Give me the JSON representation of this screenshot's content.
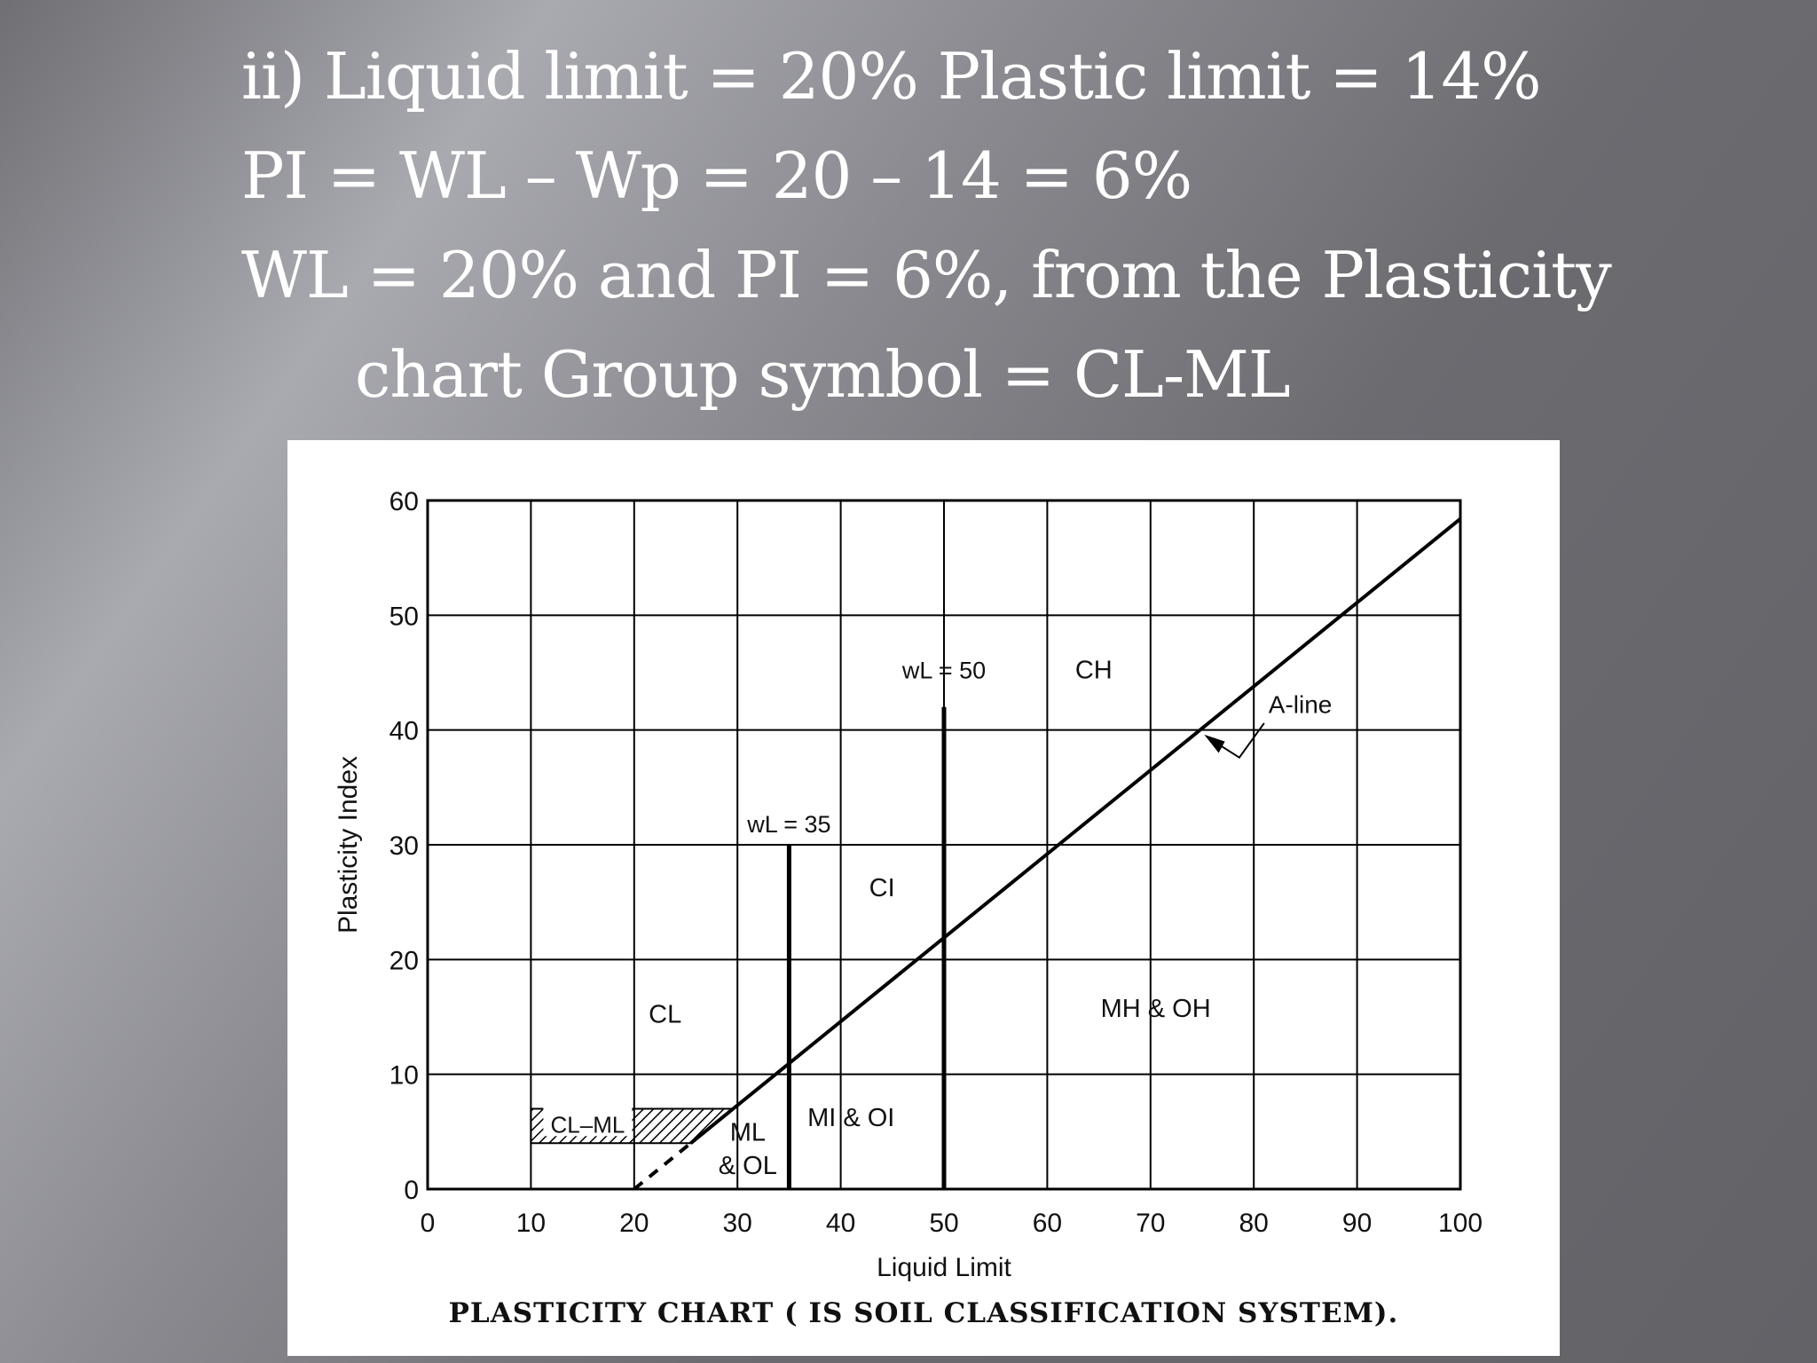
{
  "slide": {
    "line1": "ii) Liquid limit = 20% Plastic limit = 14%",
    "line2": "PI = WL – Wp = 20 – 14 = 6%",
    "line3": "WL = 20% and PI = 6%, from the Plasticity",
    "line4": "chart Group symbol = CL-ML"
  },
  "chart_data": {
    "type": "line",
    "title": "PLASTICITY CHART ( IS SOIL CLASSIFICATION SYSTEM).",
    "xlabel": "Liquid Limit",
    "ylabel": "Plasticity Index",
    "xlim": [
      0,
      100
    ],
    "ylim": [
      0,
      60
    ],
    "x_ticks": [
      0,
      10,
      20,
      30,
      40,
      50,
      60,
      70,
      80,
      90,
      100
    ],
    "y_ticks": [
      0,
      10,
      20,
      30,
      40,
      50,
      60
    ],
    "grid": true,
    "a_line": {
      "label": "A-line",
      "points": [
        [
          20,
          0
        ],
        [
          100,
          58.4
        ]
      ]
    },
    "vertical_lines": [
      {
        "label": "w_L = 35",
        "x": 35,
        "y_top": 30
      },
      {
        "label": "w_L = 50",
        "x": 50,
        "y_top": 42
      }
    ],
    "hatched_zone": {
      "label": "CL–ML",
      "x_range": [
        10,
        29.6
      ],
      "pi_range": [
        4,
        7
      ]
    },
    "zones": [
      {
        "label": "CL",
        "x": 23,
        "y": 14.5
      },
      {
        "label": "CI",
        "x": 44,
        "y": 25.5
      },
      {
        "label": "CH",
        "x": 64.5,
        "y": 44.5
      },
      {
        "label": "MH & OH",
        "x": 70.5,
        "y": 15
      },
      {
        "label": "MI & OI",
        "x": 41,
        "y": 5.5
      },
      {
        "label": "ML",
        "x": 31,
        "y": 4.2
      },
      {
        "label": "& OL",
        "x": 31,
        "y": 1.3
      }
    ]
  }
}
